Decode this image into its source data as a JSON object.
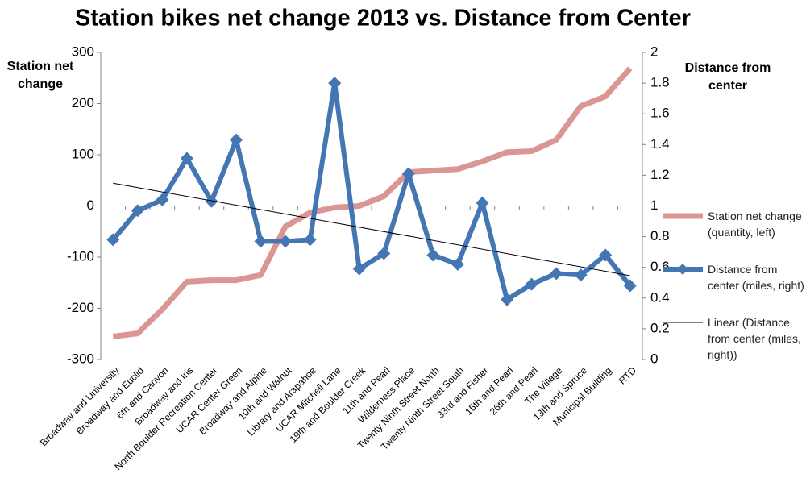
{
  "chart_data": {
    "type": "line",
    "title": "Station bikes net change 2013 vs. Distance from Center",
    "y_label": "Station net change",
    "y2_label": "Distance from center",
    "categories": [
      "Broadway and University",
      "Broadway and Euclid",
      "6th and Canyon",
      "Broadway and Iris",
      "North Boulder Recreation Center",
      "UCAR Center Green",
      "Broadway and Alpine",
      "10th and Walnut",
      "Library and Arapahoe",
      "UCAR Mitchell Lane",
      "19th and Boulder Creek",
      "11th and Pearl",
      "Wilderness Place",
      "Twenty Ninth Street North",
      "Twenty Ninth Street South",
      "33rd and Fisher",
      "15th and Pearl",
      "26th and Pearl",
      "The Village",
      "13th and Spruce",
      "Municipal Building",
      "RTD"
    ],
    "series": [
      {
        "name": "Station net change (quantity, left)",
        "color": "#d99694",
        "axis": "y",
        "values": [
          -255,
          -249,
          -202,
          -148,
          -145,
          -145,
          -135,
          -40,
          -13,
          -3,
          0,
          19,
          66,
          69,
          72,
          87,
          105,
          107,
          129,
          195,
          214,
          269
        ]
      },
      {
        "name": "Distance from center (miles, right)",
        "color": "#4376b3",
        "axis": "y2",
        "marker": "diamond",
        "values": [
          0.78,
          0.97,
          1.04,
          1.31,
          1.03,
          1.43,
          0.77,
          0.77,
          0.78,
          1.8,
          0.59,
          0.69,
          1.21,
          0.68,
          0.62,
          1.02,
          0.39,
          0.49,
          0.56,
          0.55,
          0.68,
          0.48
        ]
      }
    ],
    "trendline": {
      "name": "Linear (Distance from center (miles, right))",
      "color": "#000000",
      "fit": "linear"
    },
    "ylim": [
      -300,
      300
    ],
    "yticks": [
      -300,
      -200,
      -100,
      0,
      100,
      200,
      300
    ],
    "y2lim": [
      0,
      2
    ],
    "y2ticks": [
      0,
      0.2,
      0.4,
      0.6,
      0.8,
      1,
      1.2,
      1.4,
      1.6,
      1.8,
      2
    ],
    "grid": false,
    "legend": "right"
  }
}
